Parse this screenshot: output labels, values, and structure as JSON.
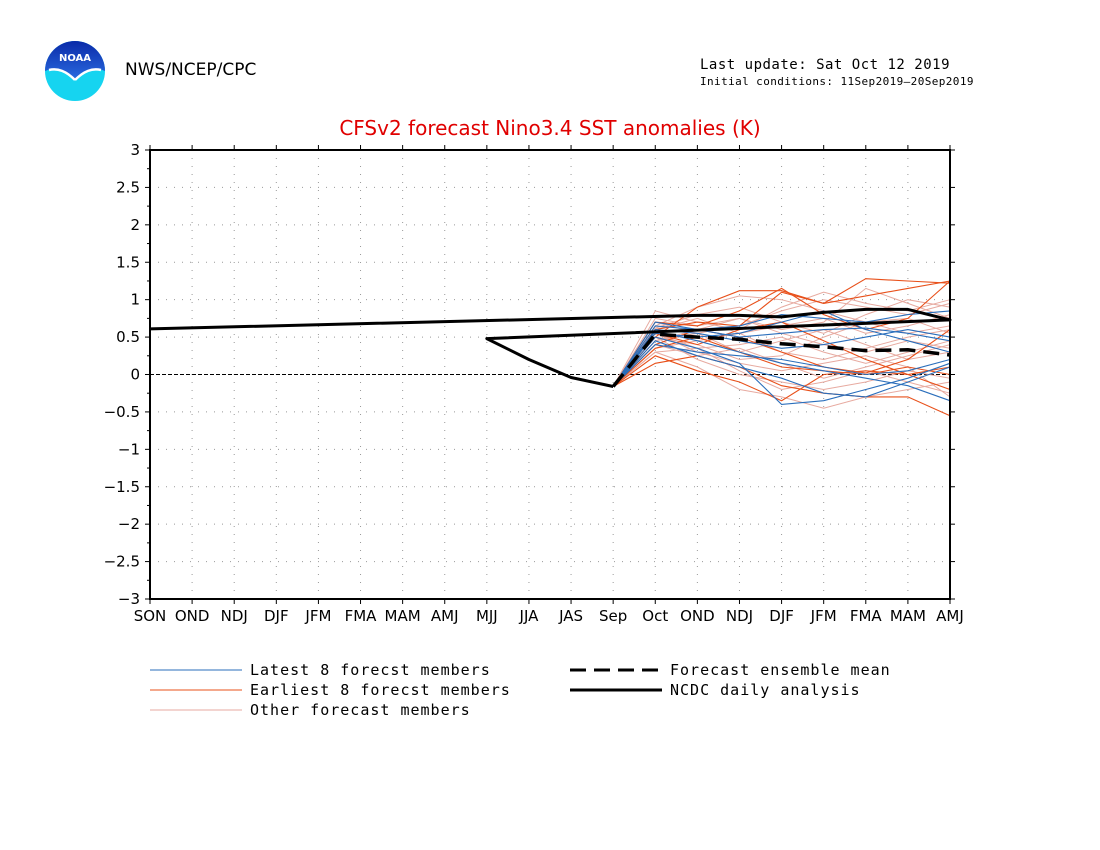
{
  "header": {
    "agency": "NWS/NCEP/CPC",
    "last_update": "Last update: Sat Oct 12 2019",
    "initial_conditions": "Initial conditions: 11Sep2019–20Sep2019",
    "logo_text": "NOAA"
  },
  "colors": {
    "latest": "#2a6ebb",
    "earliest": "#e8501a",
    "other": "#e7aaa0",
    "title": "#e00000",
    "black": "#000000"
  },
  "chart_data": {
    "type": "line",
    "title": "CFSv2 forecast Nino3.4 SST anomalies (K)",
    "xlabel": "",
    "ylabel": "",
    "ylim": [
      -3,
      3
    ],
    "y_ticks": [
      "3",
      "2.5",
      "2",
      "1.5",
      "1",
      "0.5",
      "0",
      "−0.5",
      "−1",
      "−1.5",
      "−2",
      "−2.5",
      "−3"
    ],
    "y_tick_values": [
      3,
      2.5,
      2,
      1.5,
      1,
      0.5,
      0,
      -0.5,
      -1,
      -1.5,
      -2,
      -2.5,
      -3
    ],
    "categories": [
      "SON",
      "OND",
      "NDJ",
      "DJF",
      "JFM",
      "FMA",
      "MAM",
      "AMJ",
      "MJJ",
      "JJA",
      "JAS",
      "Sep",
      "Oct",
      "OND",
      "NDJ",
      "DJF",
      "JFM",
      "FMA",
      "MAM",
      "AMJ"
    ],
    "grid": true,
    "zero_line": true,
    "legend": [
      {
        "label": "Latest 8 forecst members",
        "style": "latest"
      },
      {
        "label": "Earliest 8 forecst members",
        "style": "earliest"
      },
      {
        "label": "Other forecast members",
        "style": "other"
      },
      {
        "label": "Forecast ensemble mean",
        "style": "mean"
      },
      {
        "label": "NCDC daily analysis",
        "style": "analysis"
      }
    ],
    "analysis": {
      "name": "NCDC daily analysis",
      "x": [
        "SON",
        "OND",
        "NDJ",
        "DJF",
        "JFM",
        "FMA",
        "MAM",
        "AMJ",
        "MJJ",
        "JJA",
        "JAS",
        "Sep"
      ],
      "values": [
        0.61,
        0.79,
        0.79,
        0.77,
        0.83,
        0.87,
        0.87,
        0.73,
        0.48,
        0.2,
        -0.04,
        -0.16
      ]
    },
    "ensemble_mean": {
      "name": "Forecast ensemble mean",
      "x": [
        "Sep",
        "Oct",
        "OND",
        "NDJ",
        "DJF",
        "JFM",
        "FMA",
        "MAM",
        "AMJ"
      ],
      "values": [
        -0.16,
        0.54,
        0.5,
        0.47,
        0.41,
        0.37,
        0.32,
        0.33,
        0.26
      ]
    },
    "members_x": [
      "Sep",
      "Oct",
      "OND",
      "NDJ",
      "DJF",
      "JFM",
      "FMA",
      "MAM",
      "AMJ"
    ],
    "latest_members": [
      [
        -0.16,
        0.58,
        0.45,
        0.3,
        0.15,
        0.05,
        -0.05,
        -0.15,
        -0.35
      ],
      [
        -0.16,
        0.7,
        0.6,
        0.5,
        0.55,
        0.6,
        0.62,
        0.55,
        0.45
      ],
      [
        -0.16,
        0.45,
        0.25,
        0.1,
        -0.05,
        -0.25,
        -0.3,
        -0.1,
        0.1
      ],
      [
        -0.16,
        0.65,
        0.6,
        0.65,
        0.8,
        0.75,
        0.7,
        0.8,
        0.85
      ],
      [
        -0.16,
        0.5,
        0.35,
        0.15,
        -0.4,
        -0.35,
        -0.2,
        -0.05,
        0.15
      ],
      [
        -0.16,
        0.55,
        0.5,
        0.55,
        0.7,
        0.85,
        0.6,
        0.45,
        0.3
      ],
      [
        -0.16,
        0.4,
        0.3,
        0.25,
        0.2,
        0.1,
        0.0,
        0.05,
        0.2
      ],
      [
        -0.16,
        0.6,
        0.55,
        0.45,
        0.35,
        0.4,
        0.5,
        0.6,
        0.5
      ]
    ],
    "earliest_members": [
      [
        -0.16,
        0.5,
        0.9,
        1.12,
        1.12,
        0.95,
        1.05,
        1.15,
        1.25
      ],
      [
        -0.16,
        0.6,
        0.7,
        0.65,
        1.1,
        0.95,
        1.28,
        1.25,
        1.22
      ],
      [
        -0.16,
        0.35,
        0.5,
        0.3,
        0.1,
        0.05,
        0.0,
        0.1,
        0.0
      ],
      [
        -0.16,
        0.15,
        0.25,
        0.1,
        -0.15,
        -0.25,
        -0.3,
        -0.3,
        -0.55
      ],
      [
        -0.16,
        0.55,
        0.4,
        0.6,
        0.7,
        0.45,
        0.2,
        0.0,
        0.1
      ],
      [
        -0.16,
        0.25,
        0.05,
        -0.1,
        -0.35,
        0.0,
        0.05,
        0.0,
        -0.2
      ],
      [
        -0.16,
        0.7,
        0.65,
        0.85,
        1.15,
        0.8,
        0.6,
        0.75,
        1.25
      ],
      [
        -0.16,
        0.4,
        0.6,
        0.5,
        0.3,
        0.1,
        0.02,
        0.2,
        0.6
      ]
    ],
    "other_members": [
      [
        -0.16,
        0.85,
        0.7,
        0.6,
        0.9,
        1.1,
        0.95,
        0.85,
        1.0
      ],
      [
        -0.16,
        0.62,
        0.8,
        0.9,
        0.7,
        0.55,
        0.8,
        1.0,
        0.9
      ],
      [
        -0.16,
        0.3,
        0.1,
        -0.2,
        -0.3,
        -0.45,
        -0.3,
        -0.2,
        -0.1
      ],
      [
        -0.16,
        0.55,
        0.35,
        0.4,
        0.5,
        0.3,
        0.15,
        0.3,
        0.45
      ],
      [
        -0.16,
        0.45,
        0.6,
        0.75,
        0.6,
        0.7,
        1.15,
        0.95,
        0.75
      ],
      [
        -0.16,
        0.5,
        0.2,
        0.0,
        -0.1,
        -0.2,
        -0.1,
        0.05,
        -0.05
      ],
      [
        -0.16,
        0.7,
        0.55,
        0.3,
        0.45,
        0.6,
        0.4,
        0.2,
        0.3
      ],
      [
        -0.16,
        0.35,
        0.45,
        0.55,
        0.3,
        0.2,
        0.35,
        0.5,
        0.6
      ],
      [
        -0.16,
        0.65,
        0.9,
        1.05,
        1.0,
        0.85,
        0.7,
        0.55,
        0.65
      ],
      [
        -0.16,
        0.55,
        0.3,
        0.15,
        0.05,
        0.15,
        0.25,
        0.1,
        -0.3
      ],
      [
        -0.16,
        0.4,
        0.25,
        0.35,
        0.15,
        -0.05,
        0.1,
        0.25,
        0.4
      ],
      [
        -0.16,
        0.6,
        0.75,
        0.55,
        0.65,
        0.75,
        0.55,
        0.65,
        0.8
      ],
      [
        -0.16,
        0.5,
        0.4,
        0.2,
        0.25,
        0.5,
        0.7,
        0.75,
        0.55
      ],
      [
        -0.16,
        0.45,
        0.55,
        0.65,
        0.85,
        1.0,
        0.9,
        0.8,
        0.95
      ],
      [
        -0.16,
        0.3,
        0.35,
        0.05,
        -0.2,
        -0.1,
        0.05,
        -0.1,
        -0.25
      ],
      [
        -0.16,
        0.75,
        0.65,
        0.75,
        0.55,
        0.4,
        0.3,
        0.45,
        0.35
      ]
    ]
  }
}
